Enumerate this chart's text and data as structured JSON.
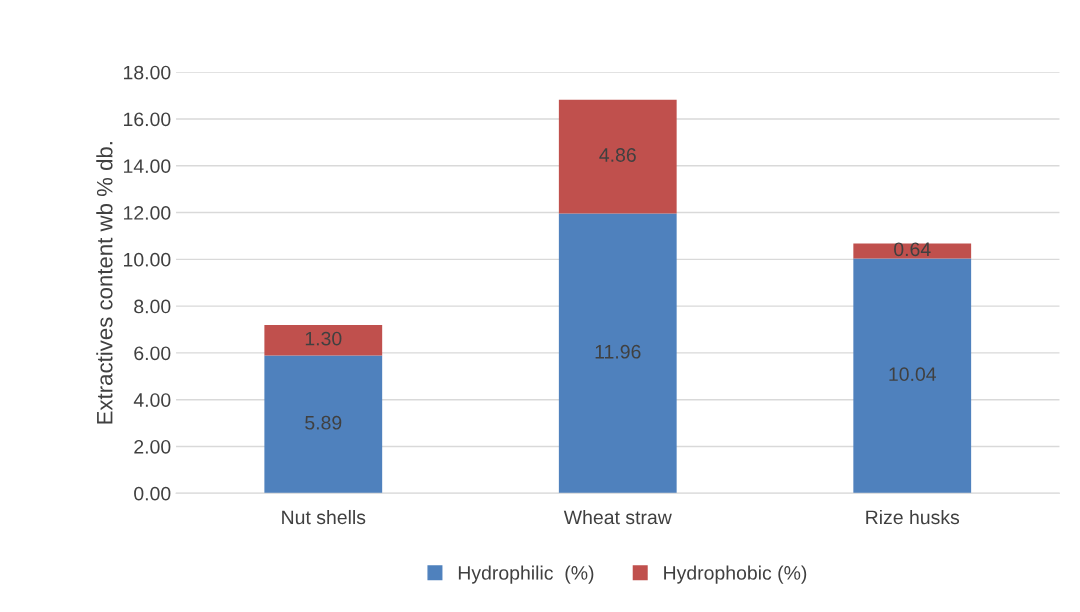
{
  "chart_data": {
    "type": "bar",
    "stacked": true,
    "ylabel": "Extractives content wb % db.",
    "categories": [
      "Nut shells",
      "Wheat straw",
      "Rize husks"
    ],
    "series": [
      {
        "name": "Hydrophilic  (%)",
        "color": "#4f81bd",
        "values": [
          5.89,
          11.96,
          10.04
        ],
        "value_labels": [
          "5.89",
          "11.96",
          "10.04"
        ]
      },
      {
        "name": "Hydrophobic (%)",
        "color": "#c0504d",
        "values": [
          1.3,
          4.86,
          0.64
        ],
        "value_labels": [
          "1.30",
          "4.86",
          "0.64"
        ]
      }
    ],
    "ylim": [
      0,
      18
    ],
    "yticks": [
      {
        "value": 0,
        "label": "0.00"
      },
      {
        "value": 2,
        "label": "2.00"
      },
      {
        "value": 4,
        "label": "4.00"
      },
      {
        "value": 6,
        "label": "6.00"
      },
      {
        "value": 8,
        "label": "8.00"
      },
      {
        "value": 10,
        "label": "10.00"
      },
      {
        "value": 12,
        "label": "12.00"
      },
      {
        "value": 14,
        "label": "14.00"
      },
      {
        "value": 16,
        "label": "16.00"
      },
      {
        "value": 18,
        "label": "18.00"
      }
    ],
    "grid": "y",
    "legend": "bottom"
  }
}
